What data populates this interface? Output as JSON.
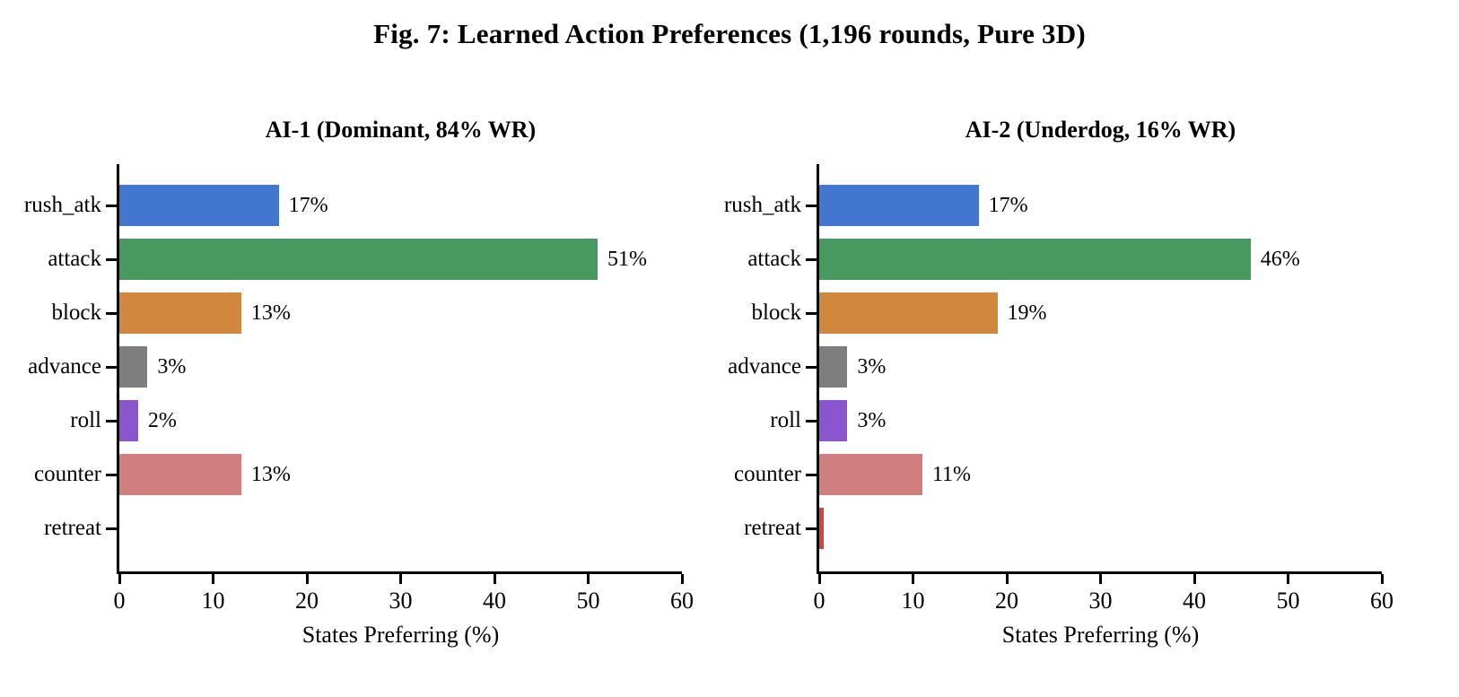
{
  "figure": {
    "title": "Fig. 7: Learned Action Preferences (1,196 rounds, Pure 3D)",
    "background_color": "#ffffff",
    "axis_color": "#000000",
    "text_color": "#000000"
  },
  "chart_data": [
    {
      "type": "bar",
      "orientation": "horizontal",
      "title": "AI-1 (Dominant, 84% WR)",
      "categories": [
        "rush_atk",
        "attack",
        "block",
        "advance",
        "roll",
        "counter",
        "retreat"
      ],
      "values": [
        17,
        51,
        13,
        3,
        2,
        13,
        0
      ],
      "value_labels": [
        "17%",
        "51%",
        "13%",
        "3%",
        "2%",
        "13%",
        ""
      ],
      "bar_colors": [
        "#4377cf",
        "#479960",
        "#d2873e",
        "#7e7e7e",
        "#8b55d0",
        "#d07e7e",
        "#d04444"
      ],
      "xlabel": "States Preferring (%)",
      "xlim": [
        0,
        60
      ],
      "xticks": [
        0,
        10,
        20,
        30,
        40,
        50,
        60
      ],
      "grid": false,
      "legend": false
    },
    {
      "type": "bar",
      "orientation": "horizontal",
      "title": "AI-2 (Underdog, 16% WR)",
      "categories": [
        "rush_atk",
        "attack",
        "block",
        "advance",
        "roll",
        "counter",
        "retreat"
      ],
      "values": [
        17,
        46,
        19,
        3,
        3,
        11,
        0.5
      ],
      "value_labels": [
        "17%",
        "46%",
        "19%",
        "3%",
        "3%",
        "11%",
        ""
      ],
      "bar_colors": [
        "#4377cf",
        "#479960",
        "#d2873e",
        "#7e7e7e",
        "#8b55d0",
        "#d07e7e",
        "#d04444"
      ],
      "xlabel": "States Preferring (%)",
      "xlim": [
        0,
        60
      ],
      "xticks": [
        0,
        10,
        20,
        30,
        40,
        50,
        60
      ],
      "grid": false,
      "legend": false
    }
  ]
}
